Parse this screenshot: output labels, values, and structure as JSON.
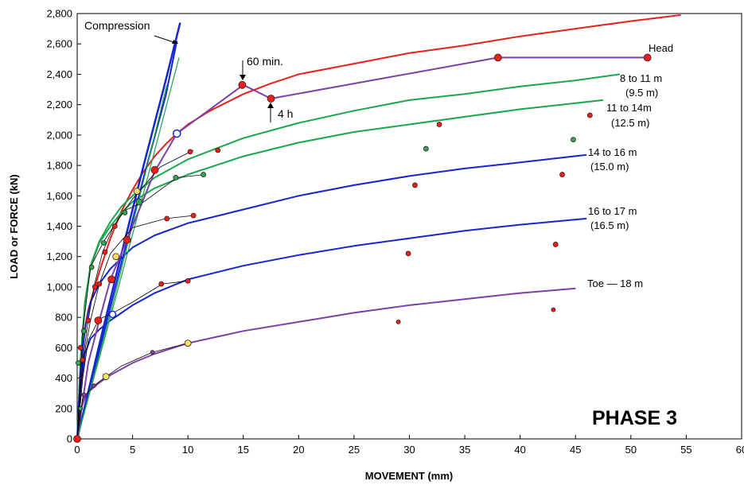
{
  "chart_data": {
    "type": "line",
    "title": "",
    "xlabel": "MOVEMENT  (mm)",
    "ylabel": "LOAD or FORCE  (kN)",
    "xlim": [
      0,
      60
    ],
    "ylim": [
      0,
      2800
    ],
    "x_ticks": [
      "0",
      "5",
      "10",
      "15",
      "20",
      "25",
      "30",
      "35",
      "40",
      "45",
      "50",
      "55",
      "60"
    ],
    "y_ticks": [
      "0",
      "200",
      "400",
      "600",
      "800",
      "1,000",
      "1,200",
      "1,400",
      "1,600",
      "1,800",
      "2,000",
      "2,200",
      "2,400",
      "2,600",
      "2,800"
    ],
    "grid": false,
    "phase_label": "PHASE 3",
    "annotations": {
      "compression": "Compression",
      "sixty_min": "60 min.",
      "four_h": "4 h",
      "head": "Head",
      "r8_11a": "8 to 11 m",
      "r8_11b": "(9.5 m)",
      "r11_14a": "11 to  14m",
      "r11_14b": "(12.5 m)",
      "r14_16a": "14 to 16 m",
      "r14_16b": "(15.0 m)",
      "r16_17a": "16 to 17 m",
      "r16_17b": "(16.5 m)",
      "toe": "Toe — 18 m"
    },
    "colors": {
      "head": "#e8201c",
      "head_test": "#7e3fa8",
      "green": "#1aa64b",
      "blue": "#1525d2",
      "purple": "#7e3fa8",
      "red_dot": "#e8201c",
      "green_dot": "#2eaa55",
      "yellow_dot": "#f4e060"
    },
    "series": [
      {
        "key": "head_fit",
        "color": "#e8201c",
        "width": 2,
        "x": [
          0,
          0.5,
          1,
          2,
          3,
          4,
          5,
          6,
          7,
          8,
          9,
          10,
          12,
          15,
          17.5,
          20,
          25,
          30,
          35,
          40,
          45,
          50,
          54.5
        ],
        "y": [
          0,
          650,
          850,
          1100,
          1320,
          1500,
          1640,
          1760,
          1860,
          1940,
          2010,
          2070,
          2160,
          2270,
          2340,
          2400,
          2470,
          2540,
          2590,
          2650,
          2700,
          2750,
          2790
        ]
      },
      {
        "key": "r8_11_fit",
        "color": "#1aa64b",
        "width": 2,
        "x": [
          0,
          0.3,
          0.7,
          1.2,
          2,
          3,
          4,
          5,
          7,
          10,
          15,
          20,
          25,
          30,
          35,
          40,
          45,
          49
        ],
        "y": [
          0,
          520,
          900,
          1140,
          1300,
          1430,
          1530,
          1600,
          1720,
          1840,
          1980,
          2080,
          2160,
          2230,
          2270,
          2320,
          2360,
          2400
        ]
      },
      {
        "key": "r11_14_fit",
        "color": "#1aa64b",
        "width": 2,
        "x": [
          0,
          0.3,
          0.7,
          1.2,
          2,
          3,
          4,
          5,
          7,
          10,
          15,
          20,
          25,
          30,
          35,
          40,
          45,
          47.5
        ],
        "y": [
          0,
          520,
          880,
          1130,
          1290,
          1400,
          1490,
          1560,
          1650,
          1740,
          1860,
          1950,
          2020,
          2070,
          2120,
          2170,
          2210,
          2230
        ]
      },
      {
        "key": "r14_16_fit",
        "color": "#1525d2",
        "width": 2,
        "x": [
          0,
          0.3,
          0.7,
          1.2,
          2,
          3,
          5,
          7,
          10,
          15,
          20,
          25,
          30,
          35,
          40,
          46
        ],
        "y": [
          0,
          440,
          720,
          900,
          1020,
          1120,
          1260,
          1340,
          1420,
          1510,
          1600,
          1670,
          1730,
          1780,
          1820,
          1870
        ]
      },
      {
        "key": "r16_17_fit",
        "color": "#1525d2",
        "width": 2,
        "x": [
          0,
          0.3,
          0.7,
          1.2,
          2,
          3,
          5,
          7,
          10,
          15,
          20,
          25,
          30,
          35,
          40,
          46
        ],
        "y": [
          0,
          330,
          560,
          660,
          720,
          780,
          880,
          960,
          1050,
          1140,
          1210,
          1270,
          1320,
          1370,
          1410,
          1450
        ]
      },
      {
        "key": "toe_fit",
        "color": "#7e3fa8",
        "width": 2,
        "x": [
          0,
          0.3,
          0.7,
          1.2,
          2,
          3,
          5,
          7,
          10,
          15,
          20,
          25,
          30,
          35,
          40,
          45
        ],
        "y": [
          0,
          190,
          270,
          320,
          370,
          420,
          500,
          560,
          630,
          710,
          770,
          830,
          880,
          920,
          960,
          990
        ]
      },
      {
        "key": "compression_1",
        "color": "#1525d2",
        "width": 2.5,
        "x": [
          0,
          2,
          4,
          6,
          8,
          9.3
        ],
        "y": [
          0,
          620,
          1220,
          1800,
          2360,
          2740
        ]
      },
      {
        "key": "compression_2",
        "color": "#1525d2",
        "width": 2,
        "x": [
          0,
          2,
          4,
          6,
          8,
          9
        ],
        "y": [
          0,
          580,
          1160,
          1720,
          2260,
          2620
        ]
      },
      {
        "key": "elastic_green_1",
        "color": "#1aa64b",
        "width": 1.2,
        "x": [
          0,
          3,
          6,
          9.2
        ],
        "y": [
          0,
          800,
          1620,
          2510
        ]
      },
      {
        "key": "elastic_green_2",
        "color": "#1aa64b",
        "width": 1.2,
        "x": [
          0,
          3,
          6,
          8.1
        ],
        "y": [
          0,
          830,
          1700,
          2330
        ]
      },
      {
        "key": "head_test",
        "color": "#7e3fa8",
        "width": 2,
        "x": [
          0,
          1,
          2,
          3,
          4.5,
          7,
          9,
          15,
          17.5,
          38,
          51.5
        ],
        "y": [
          0,
          500,
          780,
          1050,
          1310,
          1760,
          2010,
          2330,
          2240,
          2510,
          2510
        ]
      },
      {
        "key": "red_test",
        "color": "#000000",
        "width": 0.8,
        "x": [
          0,
          0.5,
          1,
          1.5,
          2.3,
          3.3,
          5,
          7.5,
          10.5
        ],
        "y": [
          0,
          520,
          780,
          1000,
          1230,
          1400,
          1580,
          1790,
          1900
        ]
      },
      {
        "key": "green_test",
        "color": "#000000",
        "width": 0.8,
        "x": [
          0,
          0.5,
          1.2,
          2.4,
          4.2,
          6,
          9,
          11.5
        ],
        "y": [
          0,
          710,
          1130,
          1300,
          1500,
          1560,
          1720,
          1740
        ]
      },
      {
        "key": "mid_test",
        "color": "#000000",
        "width": 0.8,
        "x": [
          0,
          0.5,
          1.2,
          2,
          3,
          5,
          8,
          10.5
        ],
        "y": [
          0,
          500,
          780,
          1020,
          1220,
          1390,
          1450,
          1470
        ]
      },
      {
        "key": "lower_test",
        "color": "#000000",
        "width": 0.8,
        "x": [
          0,
          0.5,
          1,
          2,
          3,
          5,
          7.7,
          10
        ],
        "y": [
          0,
          400,
          650,
          790,
          820,
          900,
          1020,
          1040
        ]
      },
      {
        "key": "toe_test",
        "color": "#000000",
        "width": 0.8,
        "x": [
          0,
          0.5,
          1.5,
          2.6,
          4,
          6.8,
          10
        ],
        "y": [
          0,
          270,
          350,
          410,
          480,
          570,
          630
        ]
      }
    ],
    "points": [
      {
        "x": 0,
        "y": 0,
        "fill": "#e8201c",
        "r": 4.5
      },
      {
        "x": 1.9,
        "y": 780,
        "fill": "#e8201c",
        "r": 4.5
      },
      {
        "x": 3.1,
        "y": 1050,
        "fill": "#e8201c",
        "r": 4.5
      },
      {
        "x": 4.5,
        "y": 1310,
        "fill": "#e8201c",
        "r": 4.5
      },
      {
        "x": 7,
        "y": 1770,
        "fill": "#e8201c",
        "r": 4.5
      },
      {
        "x": 9,
        "y": 2010,
        "fill": "#ffffff",
        "stroke": "#1525d2",
        "r": 4.5
      },
      {
        "x": 14.9,
        "y": 2330,
        "fill": "#e8201c",
        "r": 4.5
      },
      {
        "x": 17.5,
        "y": 2240,
        "fill": "#e8201c",
        "r": 4.5
      },
      {
        "x": 38,
        "y": 2510,
        "fill": "#e8201c",
        "r": 4.5
      },
      {
        "x": 51.5,
        "y": 2510,
        "fill": "#e8201c",
        "r": 4.5
      },
      {
        "x": 5.4,
        "y": 1630,
        "fill": "#f4e060",
        "r": 4
      },
      {
        "x": 5.6,
        "y": 1560,
        "fill": "#2eaa55",
        "r": 4
      },
      {
        "x": 3.5,
        "y": 1200,
        "fill": "#f4e060",
        "r": 4
      },
      {
        "x": 3.2,
        "y": 820,
        "fill": "#ffffff",
        "stroke": "#1525d2",
        "r": 4
      },
      {
        "x": 2.6,
        "y": 410,
        "fill": "#f4e060",
        "r": 4
      },
      {
        "x": 10,
        "y": 630,
        "fill": "#f4e060",
        "r": 4
      },
      {
        "x": 0.5,
        "y": 520,
        "fill": "#e8201c",
        "r": 3
      },
      {
        "x": 1.0,
        "y": 780,
        "fill": "#e8201c",
        "r": 3
      },
      {
        "x": 1.6,
        "y": 1000,
        "fill": "#e8201c",
        "r": 3
      },
      {
        "x": 2.5,
        "y": 1230,
        "fill": "#e8201c",
        "r": 3
      },
      {
        "x": 3.4,
        "y": 1400,
        "fill": "#e8201c",
        "r": 3
      },
      {
        "x": 10.2,
        "y": 1890,
        "fill": "#e8201c",
        "r": 3
      },
      {
        "x": 12.7,
        "y": 1900,
        "fill": "#e8201c",
        "r": 3
      },
      {
        "x": 0.6,
        "y": 710,
        "fill": "#2eaa55",
        "r": 3
      },
      {
        "x": 1.3,
        "y": 1130,
        "fill": "#2eaa55",
        "r": 3
      },
      {
        "x": 2.4,
        "y": 1290,
        "fill": "#2eaa55",
        "r": 3
      },
      {
        "x": 4.3,
        "y": 1490,
        "fill": "#2eaa55",
        "r": 3
      },
      {
        "x": 8.9,
        "y": 1720,
        "fill": "#2eaa55",
        "r": 3
      },
      {
        "x": 11.4,
        "y": 1740,
        "fill": "#2eaa55",
        "r": 3
      },
      {
        "x": 2.0,
        "y": 1020,
        "fill": "#e8201c",
        "r": 3
      },
      {
        "x": 8.1,
        "y": 1450,
        "fill": "#e8201c",
        "r": 3
      },
      {
        "x": 10.5,
        "y": 1470,
        "fill": "#e8201c",
        "r": 3
      },
      {
        "x": 7.6,
        "y": 1020,
        "fill": "#e8201c",
        "r": 3
      },
      {
        "x": 10.0,
        "y": 1040,
        "fill": "#e8201c",
        "r": 3
      },
      {
        "x": 0.3,
        "y": 600,
        "fill": "#e8201c",
        "r": 3
      },
      {
        "x": 0.1,
        "y": 500,
        "fill": "#2eaa55",
        "r": 3
      },
      {
        "x": 0.3,
        "y": 200,
        "fill": "#2eaa55",
        "r": 2.5
      },
      {
        "x": 1.5,
        "y": 350,
        "fill": "#7e3fa8",
        "r": 2.5
      },
      {
        "x": 6.8,
        "y": 570,
        "fill": "#7e3fa8",
        "r": 2.5
      },
      {
        "x": 0.6,
        "y": 290,
        "fill": "#7e3fa8",
        "r": 2.5
      },
      {
        "x": 32.7,
        "y": 2070,
        "fill": "#e8201c",
        "r": 3
      },
      {
        "x": 46.3,
        "y": 2130,
        "fill": "#e8201c",
        "r": 3
      },
      {
        "x": 31.5,
        "y": 1910,
        "fill": "#2eaa55",
        "r": 3
      },
      {
        "x": 44.8,
        "y": 1970,
        "fill": "#2eaa55",
        "r": 3
      },
      {
        "x": 30.5,
        "y": 1670,
        "fill": "#e8201c",
        "r": 3
      },
      {
        "x": 43.8,
        "y": 1740,
        "fill": "#e8201c",
        "r": 3
      },
      {
        "x": 29.9,
        "y": 1220,
        "fill": "#e8201c",
        "r": 3
      },
      {
        "x": 43.2,
        "y": 1280,
        "fill": "#e8201c",
        "r": 3
      },
      {
        "x": 29.0,
        "y": 770,
        "fill": "#e8201c",
        "r": 2.5
      },
      {
        "x": 43.0,
        "y": 850,
        "fill": "#e8201c",
        "r": 2.5
      }
    ]
  }
}
